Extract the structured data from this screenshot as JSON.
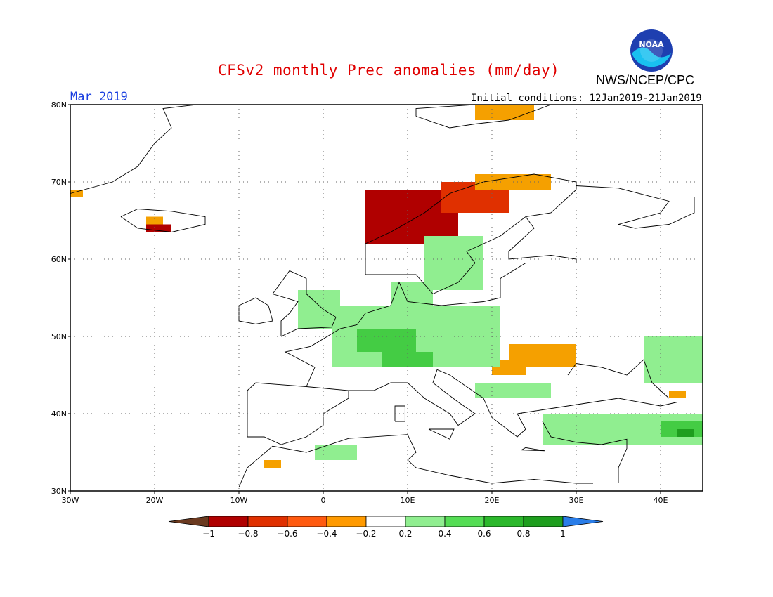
{
  "header": {
    "title": "CFSv2 monthly Prec anomalies (mm/day)",
    "month": "Mar 2019",
    "initial_conditions": "Initial conditions: 12Jan2019-21Jan2019",
    "agency": "NWS/NCEP/CPC",
    "logo_text": "NOAA"
  },
  "map": {
    "lon_range": [
      -30,
      45
    ],
    "lat_range": [
      30,
      80
    ],
    "lat_labels": [
      "30N",
      "40N",
      "50N",
      "60N",
      "70N",
      "80N"
    ],
    "lon_labels": [
      "30W",
      "20W",
      "10W",
      "0",
      "10E",
      "20E",
      "30E",
      "40E"
    ],
    "grid": "dotted",
    "colors": {
      "-1": "#6b3a20",
      "-0.8": "#b00000",
      "-0.6": "#e03000",
      "-0.4": "#ff8000",
      "-0.2": "#f5a000",
      "0.4": "#90ee90",
      "0.6": "#44cc44",
      "0.8": "#22aa22",
      "1": "#1e9e1e",
      "high": "#2060e0"
    },
    "anomaly_regions": [
      {
        "name": "norway-coast-dry",
        "level": "-0.8",
        "lon": [
          5,
          16
        ],
        "lat": [
          62,
          69
        ]
      },
      {
        "name": "norway-north-dry",
        "level": "-0.6",
        "lon": [
          14,
          22
        ],
        "lat": [
          66,
          70
        ]
      },
      {
        "name": "norway-fringe-dry",
        "level": "-0.2",
        "lon": [
          18,
          27
        ],
        "lat": [
          69,
          71
        ]
      },
      {
        "name": "iceland-dry",
        "level": "-0.8",
        "lon": [
          -21,
          -18
        ],
        "lat": [
          63.5,
          64.5
        ]
      },
      {
        "name": "iceland-fringe-dry",
        "level": "-0.2",
        "lon": [
          -21,
          -19
        ],
        "lat": [
          64.5,
          65.5
        ]
      },
      {
        "name": "greenland-edge-dry",
        "level": "-0.2",
        "lon": [
          -30,
          -28.5
        ],
        "lat": [
          68,
          69
        ]
      },
      {
        "name": "svalbard-dry",
        "level": "-0.2",
        "lon": [
          18,
          25
        ],
        "lat": [
          78,
          80
        ]
      },
      {
        "name": "carpathians-dry",
        "level": "-0.2",
        "lon": [
          22,
          30
        ],
        "lat": [
          46,
          49
        ]
      },
      {
        "name": "romania-dry",
        "level": "-0.2",
        "lon": [
          20,
          24
        ],
        "lat": [
          45,
          47
        ]
      },
      {
        "name": "morocco-dry",
        "level": "-0.2",
        "lon": [
          -7,
          -5
        ],
        "lat": [
          33,
          34
        ]
      },
      {
        "name": "caucasus-dry",
        "level": "-0.2",
        "lon": [
          41,
          43
        ],
        "lat": [
          42,
          43
        ]
      },
      {
        "name": "sweden-wet",
        "level": "0.4",
        "lon": [
          12,
          19
        ],
        "lat": [
          56,
          63
        ]
      },
      {
        "name": "denmark-wet",
        "level": "0.4",
        "lon": [
          8,
          13
        ],
        "lat": [
          54,
          57
        ]
      },
      {
        "name": "britain-wet",
        "level": "0.4",
        "lon": [
          -3,
          2
        ],
        "lat": [
          51,
          56
        ]
      },
      {
        "name": "central-europe-wet",
        "level": "0.4",
        "lon": [
          1,
          21
        ],
        "lat": [
          46,
          54
        ]
      },
      {
        "name": "germany-wet",
        "level": "0.6",
        "lon": [
          4,
          11
        ],
        "lat": [
          48,
          51
        ]
      },
      {
        "name": "alps-wet",
        "level": "0.6",
        "lon": [
          7,
          13
        ],
        "lat": [
          46,
          48
        ]
      },
      {
        "name": "balkans-wet",
        "level": "0.4",
        "lon": [
          18,
          27
        ],
        "lat": [
          42,
          44
        ]
      },
      {
        "name": "turkey-wet",
        "level": "0.4",
        "lon": [
          26,
          45
        ],
        "lat": [
          36,
          40
        ]
      },
      {
        "name": "north-africa-wet",
        "level": "0.4",
        "lon": [
          -1,
          4
        ],
        "lat": [
          34,
          36
        ]
      },
      {
        "name": "caucasus-wet",
        "level": "0.4",
        "lon": [
          38,
          45
        ],
        "lat": [
          44,
          50
        ]
      },
      {
        "name": "turkey-east-wet",
        "level": "0.6",
        "lon": [
          40,
          45
        ],
        "lat": [
          37,
          39
        ]
      },
      {
        "name": "east-wet-high",
        "level": "1",
        "lon": [
          42,
          44
        ],
        "lat": [
          37,
          38
        ]
      }
    ]
  },
  "colorbar": {
    "ticks": [
      "−1",
      "−0.8",
      "−0.6",
      "−0.4",
      "−0.2",
      "0.2",
      "0.4",
      "0.6",
      "0.8",
      "1"
    ],
    "colors": [
      "#6b3a20",
      "#b00000",
      "#e03000",
      "#ff5a10",
      "#ff9a00",
      "#ffffff",
      "#90ee90",
      "#55dd55",
      "#2cb82c",
      "#1e9e1e",
      "#2a7de8"
    ]
  }
}
